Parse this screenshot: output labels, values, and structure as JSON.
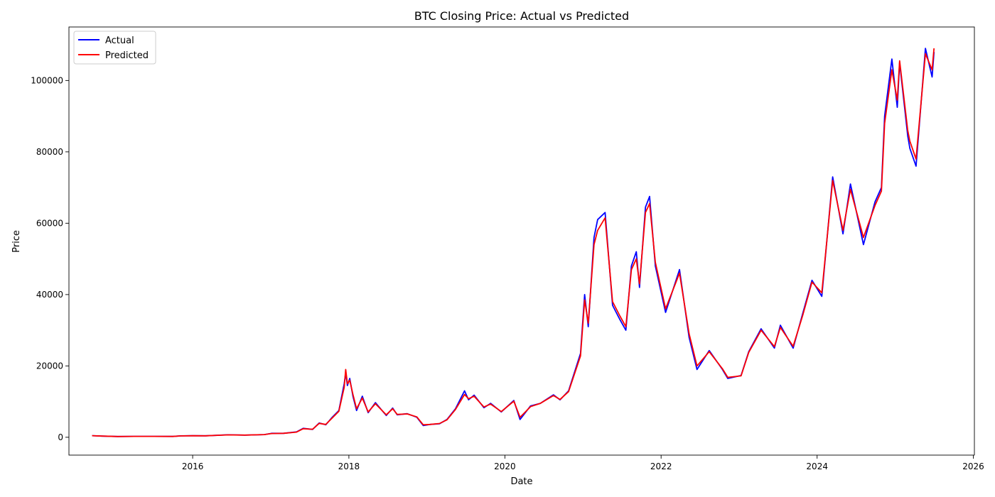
{
  "chart_data": {
    "type": "line",
    "title": "BTC Closing Price: Actual vs Predicted",
    "xlabel": "Date",
    "ylabel": "Price",
    "xlim": [
      "2014-06-01",
      "2026-01-06"
    ],
    "ylim": [
      -5000,
      115000
    ],
    "x_ticks": [
      "2016",
      "2018",
      "2020",
      "2022",
      "2024",
      "2026"
    ],
    "y_ticks": [
      0,
      20000,
      40000,
      60000,
      80000,
      100000
    ],
    "grid": false,
    "legend_position": "upper-left",
    "series": [
      {
        "name": "Actual",
        "color": "#0000ff",
        "points": [
          [
            "2014-09-17",
            460
          ],
          [
            "2014-11-01",
            330
          ],
          [
            "2015-01-15",
            210
          ],
          [
            "2015-04-01",
            250
          ],
          [
            "2015-07-01",
            260
          ],
          [
            "2015-10-01",
            240
          ],
          [
            "2015-11-05",
            400
          ],
          [
            "2016-01-01",
            430
          ],
          [
            "2016-03-01",
            420
          ],
          [
            "2016-06-15",
            700
          ],
          [
            "2016-09-01",
            600
          ],
          [
            "2016-12-01",
            750
          ],
          [
            "2017-01-05",
            1100
          ],
          [
            "2017-03-01",
            1100
          ],
          [
            "2017-05-01",
            1500
          ],
          [
            "2017-06-01",
            2500
          ],
          [
            "2017-07-15",
            2200
          ],
          [
            "2017-08-15",
            4000
          ],
          [
            "2017-09-15",
            3500
          ],
          [
            "2017-10-15",
            5600
          ],
          [
            "2017-11-15",
            7500
          ],
          [
            "2017-12-10",
            15000
          ],
          [
            "2017-12-17",
            18000
          ],
          [
            "2017-12-25",
            14500
          ],
          [
            "2018-01-05",
            16500
          ],
          [
            "2018-01-20",
            11500
          ],
          [
            "2018-02-06",
            7500
          ],
          [
            "2018-03-05",
            11500
          ],
          [
            "2018-04-01",
            6900
          ],
          [
            "2018-05-05",
            9700
          ],
          [
            "2018-06-25",
            6100
          ],
          [
            "2018-07-25",
            8200
          ],
          [
            "2018-08-15",
            6300
          ],
          [
            "2018-10-01",
            6600
          ],
          [
            "2018-11-15",
            5600
          ],
          [
            "2018-12-15",
            3300
          ],
          [
            "2019-01-15",
            3600
          ],
          [
            "2019-03-01",
            3800
          ],
          [
            "2019-04-05",
            5000
          ],
          [
            "2019-05-15",
            8000
          ],
          [
            "2019-06-26",
            13000
          ],
          [
            "2019-07-15",
            10500
          ],
          [
            "2019-08-10",
            11800
          ],
          [
            "2019-09-25",
            8300
          ],
          [
            "2019-10-26",
            9500
          ],
          [
            "2019-12-15",
            7100
          ],
          [
            "2020-02-12",
            10300
          ],
          [
            "2020-03-12",
            5000
          ],
          [
            "2020-04-30",
            8800
          ],
          [
            "2020-06-15",
            9500
          ],
          [
            "2020-08-15",
            11900
          ],
          [
            "2020-09-15",
            10500
          ],
          [
            "2020-10-25",
            13000
          ],
          [
            "2020-12-20",
            23500
          ],
          [
            "2021-01-08",
            40000
          ],
          [
            "2021-01-25",
            31000
          ],
          [
            "2021-02-21",
            56000
          ],
          [
            "2021-03-10",
            61000
          ],
          [
            "2021-04-14",
            63000
          ],
          [
            "2021-05-19",
            37000
          ],
          [
            "2021-06-22",
            33000
          ],
          [
            "2021-07-20",
            30000
          ],
          [
            "2021-08-15",
            48000
          ],
          [
            "2021-09-07",
            52000
          ],
          [
            "2021-09-22",
            42000
          ],
          [
            "2021-10-20",
            64500
          ],
          [
            "2021-11-08",
            67500
          ],
          [
            "2021-12-05",
            48000
          ],
          [
            "2022-01-22",
            35000
          ],
          [
            "2022-03-28",
            47000
          ],
          [
            "2022-05-12",
            28000
          ],
          [
            "2022-06-18",
            19000
          ],
          [
            "2022-08-14",
            24300
          ],
          [
            "2022-10-15",
            19000
          ],
          [
            "2022-11-09",
            16500
          ],
          [
            "2023-01-10",
            17300
          ],
          [
            "2023-02-15",
            24000
          ],
          [
            "2023-04-14",
            30400
          ],
          [
            "2023-06-15",
            25000
          ],
          [
            "2023-07-13",
            31400
          ],
          [
            "2023-09-11",
            25000
          ],
          [
            "2023-10-25",
            34500
          ],
          [
            "2023-12-08",
            44000
          ],
          [
            "2024-01-23",
            39500
          ],
          [
            "2024-03-14",
            73000
          ],
          [
            "2024-05-01",
            57000
          ],
          [
            "2024-06-05",
            71000
          ],
          [
            "2024-08-05",
            54000
          ],
          [
            "2024-09-28",
            66000
          ],
          [
            "2024-10-28",
            70000
          ],
          [
            "2024-11-12",
            90000
          ],
          [
            "2024-12-16",
            106000
          ],
          [
            "2025-01-10",
            92500
          ],
          [
            "2025-01-21",
            105000
          ],
          [
            "2025-02-28",
            84500
          ],
          [
            "2025-03-10",
            81000
          ],
          [
            "2025-04-08",
            76000
          ],
          [
            "2025-05-22",
            109000
          ],
          [
            "2025-06-22",
            101000
          ],
          [
            "2025-07-01",
            108000
          ]
        ]
      },
      {
        "name": "Predicted",
        "color": "#ff0000",
        "points": [
          [
            "2014-09-17",
            460
          ],
          [
            "2014-11-01",
            330
          ],
          [
            "2015-01-15",
            220
          ],
          [
            "2015-04-01",
            250
          ],
          [
            "2015-07-01",
            260
          ],
          [
            "2015-10-01",
            240
          ],
          [
            "2015-11-05",
            380
          ],
          [
            "2016-01-01",
            430
          ],
          [
            "2016-03-01",
            420
          ],
          [
            "2016-06-15",
            680
          ],
          [
            "2016-09-01",
            610
          ],
          [
            "2016-12-01",
            760
          ],
          [
            "2017-01-05",
            1050
          ],
          [
            "2017-03-01",
            1100
          ],
          [
            "2017-05-01",
            1450
          ],
          [
            "2017-06-01",
            2400
          ],
          [
            "2017-07-15",
            2250
          ],
          [
            "2017-08-15",
            3900
          ],
          [
            "2017-09-15",
            3600
          ],
          [
            "2017-10-15",
            5400
          ],
          [
            "2017-11-15",
            7300
          ],
          [
            "2017-12-10",
            14000
          ],
          [
            "2017-12-17",
            19000
          ],
          [
            "2017-12-25",
            15000
          ],
          [
            "2018-01-05",
            16000
          ],
          [
            "2018-01-20",
            12000
          ],
          [
            "2018-02-06",
            8000
          ],
          [
            "2018-03-05",
            11000
          ],
          [
            "2018-04-01",
            7100
          ],
          [
            "2018-05-05",
            9400
          ],
          [
            "2018-06-25",
            6300
          ],
          [
            "2018-07-25",
            8000
          ],
          [
            "2018-08-15",
            6400
          ],
          [
            "2018-10-01",
            6550
          ],
          [
            "2018-11-15",
            5700
          ],
          [
            "2018-12-15",
            3500
          ],
          [
            "2019-01-15",
            3600
          ],
          [
            "2019-03-01",
            3850
          ],
          [
            "2019-04-05",
            4900
          ],
          [
            "2019-05-15",
            7800
          ],
          [
            "2019-06-26",
            12000
          ],
          [
            "2019-07-15",
            10800
          ],
          [
            "2019-08-10",
            11500
          ],
          [
            "2019-09-25",
            8500
          ],
          [
            "2019-10-26",
            9300
          ],
          [
            "2019-12-15",
            7200
          ],
          [
            "2020-02-12",
            10100
          ],
          [
            "2020-03-12",
            5600
          ],
          [
            "2020-04-30",
            8600
          ],
          [
            "2020-06-15",
            9500
          ],
          [
            "2020-08-15",
            11700
          ],
          [
            "2020-09-15",
            10600
          ],
          [
            "2020-10-25",
            12800
          ],
          [
            "2020-12-20",
            22800
          ],
          [
            "2021-01-08",
            38500
          ],
          [
            "2021-01-25",
            32000
          ],
          [
            "2021-02-21",
            54000
          ],
          [
            "2021-03-10",
            58000
          ],
          [
            "2021-04-14",
            61500
          ],
          [
            "2021-05-19",
            38000
          ],
          [
            "2021-06-22",
            34000
          ],
          [
            "2021-07-20",
            31000
          ],
          [
            "2021-08-15",
            47000
          ],
          [
            "2021-09-07",
            50000
          ],
          [
            "2021-09-22",
            43000
          ],
          [
            "2021-10-20",
            63000
          ],
          [
            "2021-11-08",
            65500
          ],
          [
            "2021-12-05",
            49000
          ],
          [
            "2022-01-22",
            36000
          ],
          [
            "2022-03-28",
            46000
          ],
          [
            "2022-05-12",
            29000
          ],
          [
            "2022-06-18",
            20000
          ],
          [
            "2022-08-14",
            24000
          ],
          [
            "2022-10-15",
            19200
          ],
          [
            "2022-11-09",
            16800
          ],
          [
            "2023-01-10",
            17200
          ],
          [
            "2023-02-15",
            23800
          ],
          [
            "2023-04-14",
            30000
          ],
          [
            "2023-06-15",
            25400
          ],
          [
            "2023-07-13",
            30800
          ],
          [
            "2023-09-11",
            25500
          ],
          [
            "2023-10-25",
            34000
          ],
          [
            "2023-12-08",
            43500
          ],
          [
            "2024-01-23",
            40500
          ],
          [
            "2024-03-14",
            72000
          ],
          [
            "2024-05-01",
            58000
          ],
          [
            "2024-06-05",
            69500
          ],
          [
            "2024-08-05",
            56000
          ],
          [
            "2024-09-28",
            65000
          ],
          [
            "2024-10-28",
            69000
          ],
          [
            "2024-11-12",
            88000
          ],
          [
            "2024-12-16",
            103000
          ],
          [
            "2025-01-10",
            94500
          ],
          [
            "2025-01-21",
            105500
          ],
          [
            "2025-02-28",
            86000
          ],
          [
            "2025-03-10",
            83000
          ],
          [
            "2025-04-08",
            78000
          ],
          [
            "2025-05-22",
            107500
          ],
          [
            "2025-06-22",
            103000
          ],
          [
            "2025-07-01",
            109000
          ]
        ]
      }
    ]
  }
}
